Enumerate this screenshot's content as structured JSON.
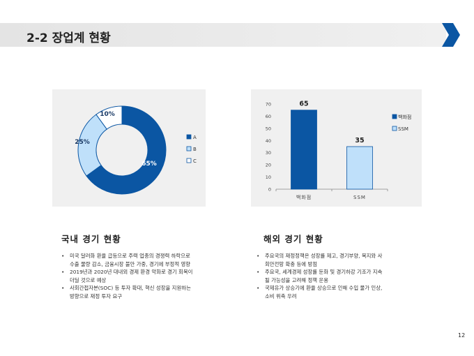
{
  "header": {
    "title": "2-2 장업계 현황"
  },
  "chart_data": [
    {
      "type": "pie",
      "variant": "donut",
      "labels": [
        "A",
        "B",
        "C"
      ],
      "values": [
        65,
        25,
        10
      ],
      "data_labels": [
        "65%",
        "25%",
        "10%"
      ],
      "colors": [
        "#0b56a3",
        "#bfe0fa",
        "#ffffff"
      ],
      "legend": "right"
    },
    {
      "type": "bar",
      "categories": [
        "백화점",
        "SSM"
      ],
      "values": [
        65,
        35
      ],
      "series_names": [
        "백화점",
        "SSM"
      ],
      "colors": [
        "#0b56a3",
        "#bfe0fa"
      ],
      "ylim": [
        0,
        70
      ],
      "yticks": [
        0,
        10,
        20,
        30,
        40,
        50,
        60,
        70
      ],
      "legend": "right"
    }
  ],
  "domestic": {
    "heading": "국내 경기 현황",
    "bullets": [
      [
        "미국 달러화 환율 급등으로 주력 업종의 경쟁력 하락으로",
        "수출 물량 감소, 금융시장 불안 가중, 경기에 부정적 영향"
      ],
      [
        "2019년과 2020년 대내외 경제 환경 악화로 경기 회복이",
        "더딜 것으로 예상"
      ],
      [
        "사회간접자본(SOC) 등 투자 확대, 혁신 성장을 지원하는",
        "방향으로 재정 투자 요구"
      ]
    ]
  },
  "overseas": {
    "heading": "해외 경기 현황",
    "bullets": [
      [
        "주요국의 재정정책은 성장률 제고, 경기부양, 복지와 사",
        "회안전망 확충 등에 방점"
      ],
      [
        "주요국, 세계경제 성장률 둔화 및 경기하강 기조가 지속",
        "될 가능성을 고려해 정책 운용"
      ],
      [
        "국제유가 상승기에 환율 상승으로 인해 수입 물가 인상,",
        "소비 위축 우려"
      ]
    ]
  },
  "page_number": "12"
}
